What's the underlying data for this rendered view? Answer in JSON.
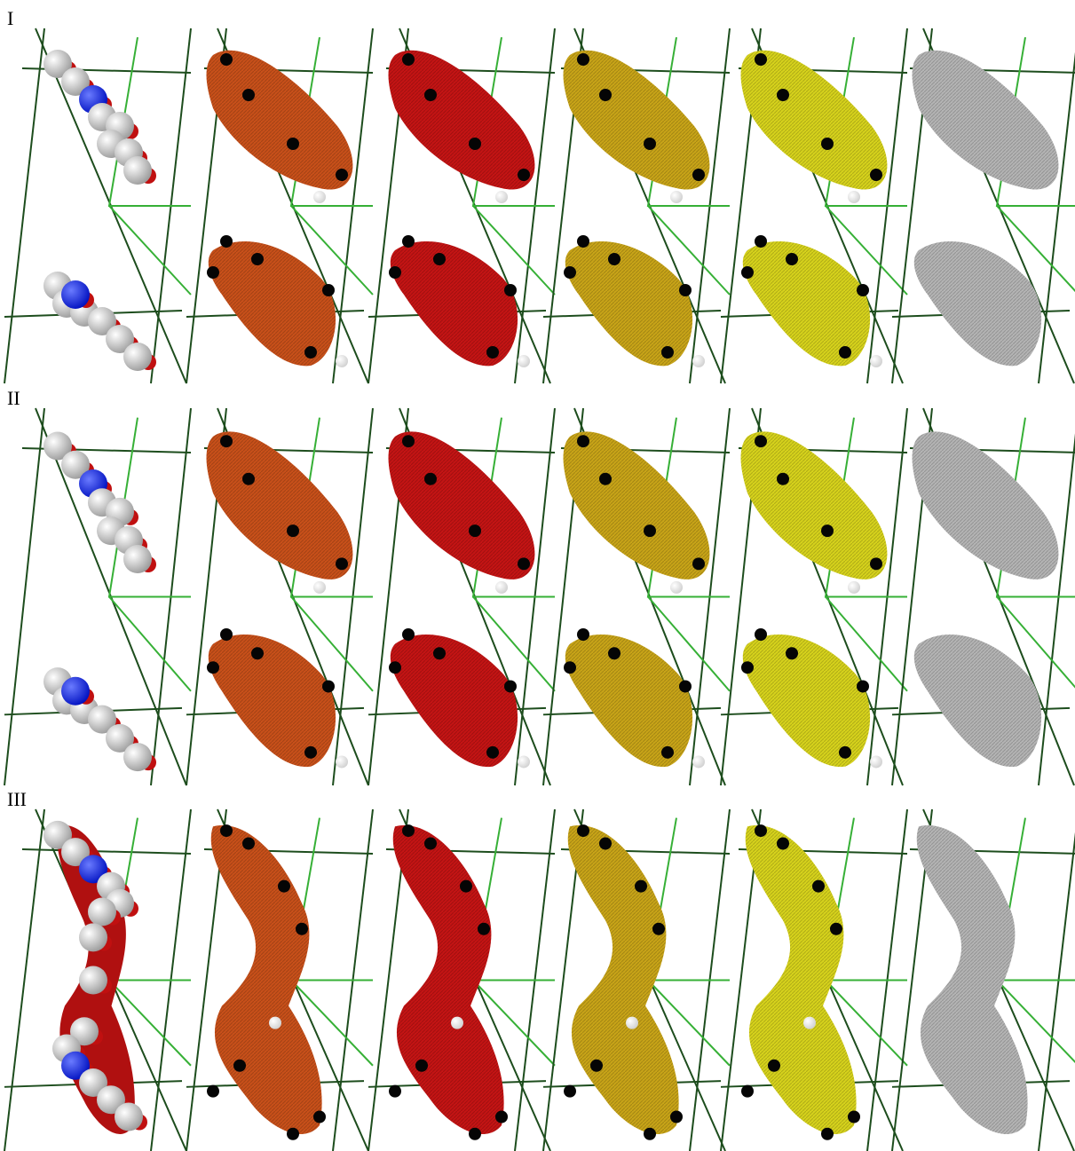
{
  "rows": [
    {
      "label": "I"
    },
    {
      "label": "II"
    },
    {
      "label": "III"
    }
  ]
}
